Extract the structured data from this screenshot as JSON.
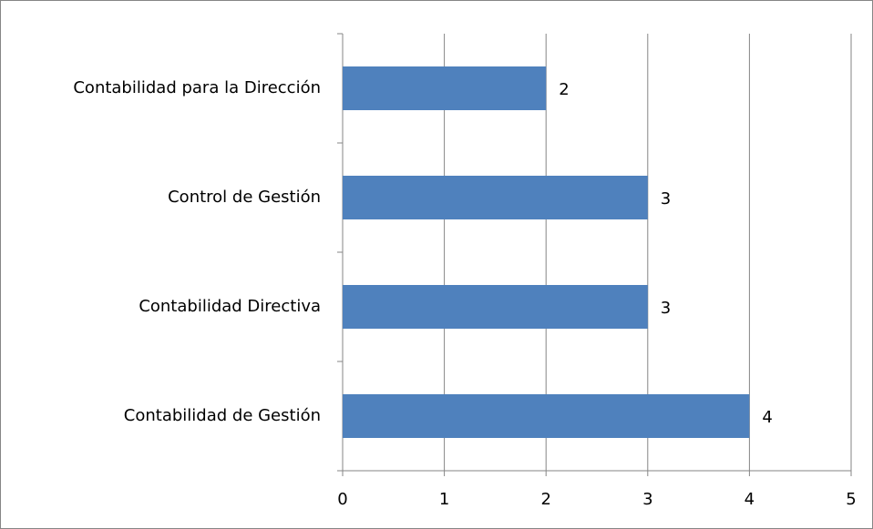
{
  "chart_data": {
    "type": "bar",
    "orientation": "horizontal",
    "categories": [
      "Contabilidad para la Dirección",
      "Control de Gestión",
      "Contabilidad Directiva",
      "Contabilidad de Gestión"
    ],
    "values": [
      2,
      3,
      3,
      4
    ],
    "color": "#4f81bd",
    "xlim": [
      0,
      5
    ],
    "xticks": [
      0,
      1,
      2,
      3,
      4,
      5
    ],
    "grid": true
  }
}
